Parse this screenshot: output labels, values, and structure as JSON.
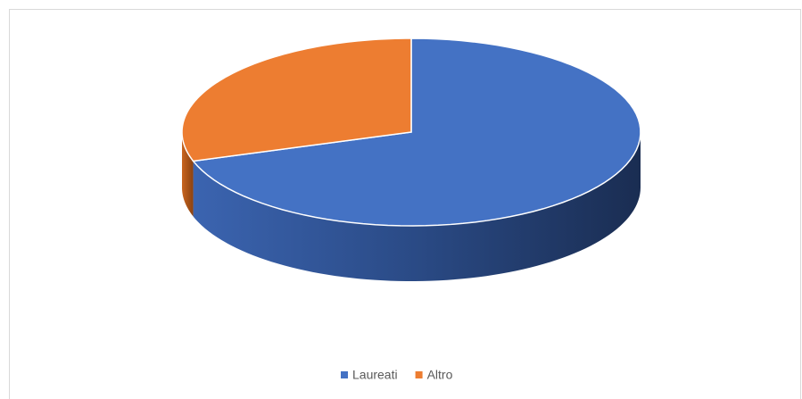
{
  "chart_data": {
    "type": "pie",
    "categories": [
      "Laureati",
      "Altro"
    ],
    "values": [
      70,
      30
    ],
    "colors": [
      "#4472c4",
      "#ed7d31"
    ],
    "legend": "bottom"
  }
}
